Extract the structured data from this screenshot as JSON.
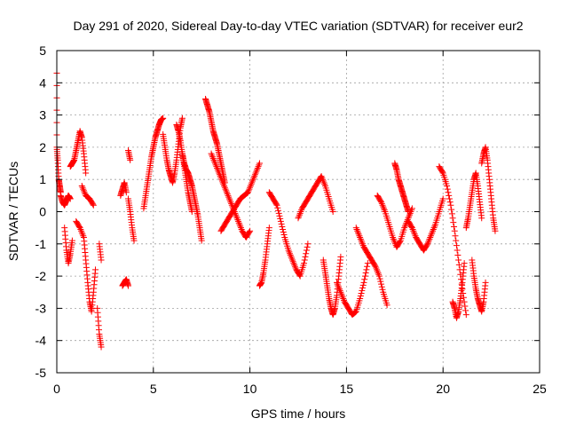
{
  "chart_data": {
    "type": "scatter",
    "title": "Day 291 of 2020, Sidereal Day-to-day VTEC variation (SDTVAR) for receiver eur2",
    "xlabel": "GPS time / hours",
    "ylabel": "SDTVAR / TECUs",
    "xlim": [
      0,
      25
    ],
    "ylim": [
      -5,
      5
    ],
    "xticks": [
      "0",
      "5",
      "10",
      "15",
      "20",
      "25"
    ],
    "yticks": [
      "-5",
      "-4",
      "-3",
      "-2",
      "-1",
      "0",
      "1",
      "2",
      "3",
      "4",
      "5"
    ],
    "grid": true,
    "marker": "+",
    "series_color": "#ff0000",
    "segments": [
      {
        "x": [
          0.0,
          0.0,
          0.05,
          0.1,
          0.15,
          0.2
        ],
        "y": [
          4.3,
          2.0,
          1.6,
          1.0,
          0.8,
          0.6
        ]
      },
      {
        "x": [
          0.2,
          0.3,
          0.4,
          0.5,
          0.6,
          0.7
        ],
        "y": [
          0.5,
          0.3,
          0.2,
          0.35,
          0.5,
          0.4
        ]
      },
      {
        "x": [
          0.4,
          0.5,
          0.6,
          0.7,
          0.8
        ],
        "y": [
          -0.5,
          -1.2,
          -1.6,
          -1.3,
          -0.9
        ]
      },
      {
        "x": [
          0.7,
          0.8,
          0.9,
          1.0,
          1.1,
          1.2,
          1.3,
          1.4,
          1.5
        ],
        "y": [
          1.4,
          1.5,
          1.6,
          1.9,
          2.2,
          2.5,
          2.3,
          1.8,
          1.2
        ]
      },
      {
        "x": [
          1.0,
          1.2,
          1.4,
          1.5,
          1.6,
          1.7,
          1.8,
          1.9,
          2.0
        ],
        "y": [
          -0.3,
          -0.5,
          -0.8,
          -1.5,
          -2.2,
          -2.8,
          -3.1,
          -2.5,
          -1.8
        ]
      },
      {
        "x": [
          1.3,
          1.5,
          1.7,
          1.9
        ],
        "y": [
          0.8,
          0.5,
          0.4,
          0.2
        ]
      },
      {
        "x": [
          2.1,
          2.2,
          2.3
        ],
        "y": [
          -3.0,
          -3.8,
          -4.2
        ]
      },
      {
        "x": [
          2.2,
          2.3
        ],
        "y": [
          -1.0,
          -1.5
        ]
      },
      {
        "x": [
          3.4,
          3.5,
          3.6,
          3.7
        ],
        "y": [
          -2.3,
          -2.2,
          -2.1,
          -2.3
        ]
      },
      {
        "x": [
          3.3,
          3.4,
          3.5,
          3.6
        ],
        "y": [
          0.5,
          0.7,
          0.9,
          0.6
        ]
      },
      {
        "x": [
          3.7,
          3.8,
          3.9,
          4.0
        ],
        "y": [
          0.4,
          0.0,
          -0.5,
          -0.9
        ]
      },
      {
        "x": [
          3.7,
          3.8
        ],
        "y": [
          1.9,
          1.6
        ]
      },
      {
        "x": [
          4.5,
          4.6,
          4.7,
          4.8,
          4.9,
          5.0,
          5.1,
          5.2,
          5.3,
          5.4,
          5.5
        ],
        "y": [
          0.1,
          0.5,
          0.9,
          1.3,
          1.7,
          2.0,
          2.3,
          2.5,
          2.7,
          2.85,
          2.9
        ]
      },
      {
        "x": [
          5.5,
          5.6,
          5.7,
          5.8,
          5.9,
          6.0,
          6.1,
          6.2,
          6.3,
          6.4,
          6.5
        ],
        "y": [
          2.4,
          2.0,
          1.6,
          1.3,
          1.1,
          0.9,
          1.2,
          1.6,
          2.1,
          2.6,
          2.9
        ]
      },
      {
        "x": [
          6.2,
          6.3,
          6.4,
          6.5,
          6.6,
          6.7,
          6.8,
          6.9,
          7.0
        ],
        "y": [
          2.7,
          2.5,
          2.2,
          1.8,
          1.4,
          1.0,
          0.6,
          0.3,
          0.0
        ]
      },
      {
        "x": [
          6.5,
          6.6,
          6.7,
          6.8,
          6.9,
          7.0,
          7.1,
          7.2,
          7.3,
          7.4,
          7.5
        ],
        "y": [
          1.8,
          1.5,
          1.3,
          1.2,
          1.0,
          0.8,
          0.5,
          0.2,
          -0.1,
          -0.5,
          -0.9
        ]
      },
      {
        "x": [
          7.7,
          7.8,
          7.9,
          8.0,
          8.1,
          8.2,
          8.3,
          8.4,
          8.5,
          8.6,
          8.7
        ],
        "y": [
          3.5,
          3.3,
          3.1,
          2.8,
          2.5,
          2.3,
          2.1,
          1.8,
          1.5,
          1.2,
          0.9
        ]
      },
      {
        "x": [
          8.0,
          8.2,
          8.4,
          8.6,
          8.8,
          9.0,
          9.2,
          9.4,
          9.6,
          9.8,
          10.0
        ],
        "y": [
          1.8,
          1.5,
          1.2,
          0.9,
          0.6,
          0.3,
          0.0,
          -0.3,
          -0.6,
          -0.8,
          -0.6
        ]
      },
      {
        "x": [
          8.5,
          8.7,
          8.9,
          9.1,
          9.3,
          9.5,
          9.7,
          9.9,
          10.1,
          10.3,
          10.5
        ],
        "y": [
          -0.6,
          -0.4,
          -0.2,
          0.0,
          0.2,
          0.4,
          0.5,
          0.6,
          0.9,
          1.2,
          1.5
        ]
      },
      {
        "x": [
          10.5,
          10.6,
          10.7,
          10.8,
          10.9,
          11.0
        ],
        "y": [
          -2.3,
          -2.2,
          -1.9,
          -1.5,
          -1.0,
          -0.5
        ]
      },
      {
        "x": [
          11.0,
          11.2,
          11.4,
          11.6,
          11.8,
          12.0,
          12.2,
          12.4,
          12.6,
          12.8,
          13.0
        ],
        "y": [
          0.6,
          0.4,
          0.2,
          -0.3,
          -0.8,
          -1.2,
          -1.5,
          -1.8,
          -2.0,
          -1.6,
          -1.0
        ]
      },
      {
        "x": [
          12.5,
          12.7,
          12.9,
          13.1,
          13.3,
          13.5,
          13.7,
          13.9,
          14.1,
          14.3
        ],
        "y": [
          -0.2,
          0.1,
          0.3,
          0.5,
          0.7,
          0.9,
          1.1,
          0.8,
          0.4,
          0.0
        ]
      },
      {
        "x": [
          13.8,
          13.9,
          14.0,
          14.1,
          14.2,
          14.3,
          14.4,
          14.5,
          14.6,
          14.7
        ],
        "y": [
          -1.5,
          -1.9,
          -2.3,
          -2.7,
          -3.0,
          -3.2,
          -3.0,
          -2.6,
          -2.0,
          -1.4
        ]
      },
      {
        "x": [
          14.5,
          14.7,
          14.9,
          15.1,
          15.3,
          15.5,
          15.7,
          15.9,
          16.1
        ],
        "y": [
          -2.2,
          -2.5,
          -2.8,
          -3.0,
          -3.2,
          -3.1,
          -2.7,
          -2.2,
          -1.6
        ]
      },
      {
        "x": [
          15.5,
          15.7,
          15.9,
          16.1,
          16.3,
          16.5,
          16.7,
          16.9,
          17.1
        ],
        "y": [
          -0.5,
          -0.8,
          -1.1,
          -1.3,
          -1.5,
          -1.7,
          -2.0,
          -2.5,
          -2.9
        ]
      },
      {
        "x": [
          16.6,
          16.8,
          17.0,
          17.2,
          17.4,
          17.6,
          17.8,
          18.0,
          18.2,
          18.4
        ],
        "y": [
          0.5,
          0.3,
          0.0,
          -0.4,
          -0.8,
          -1.1,
          -0.9,
          -0.5,
          -0.2,
          0.1
        ]
      },
      {
        "x": [
          17.5,
          17.6,
          17.7,
          17.8,
          17.9,
          18.0,
          18.1,
          18.2
        ],
        "y": [
          1.5,
          1.3,
          1.0,
          0.8,
          0.6,
          0.4,
          0.2,
          0.0
        ]
      },
      {
        "x": [
          18.2,
          18.4,
          18.6,
          18.8,
          19.0,
          19.2,
          19.4,
          19.6,
          19.8,
          20.0
        ],
        "y": [
          -0.3,
          -0.5,
          -0.8,
          -1.0,
          -1.2,
          -1.0,
          -0.7,
          -0.4,
          0.0,
          0.4
        ]
      },
      {
        "x": [
          19.8,
          20.0,
          20.2,
          20.4,
          20.6,
          20.8,
          21.0,
          21.2
        ],
        "y": [
          1.4,
          1.2,
          0.8,
          0.2,
          -0.6,
          -1.5,
          -2.4,
          -3.2
        ]
      },
      {
        "x": [
          20.5,
          20.6,
          20.7,
          20.8,
          20.9,
          21.0,
          21.1
        ],
        "y": [
          -2.8,
          -3.0,
          -3.3,
          -3.1,
          -2.7,
          -2.2,
          -1.6
        ]
      },
      {
        "x": [
          21.2,
          21.3,
          21.4,
          21.5,
          21.6,
          21.7,
          21.8,
          21.9,
          22.0
        ],
        "y": [
          -0.5,
          -0.2,
          0.2,
          0.6,
          1.0,
          1.2,
          0.8,
          0.3,
          -0.2
        ]
      },
      {
        "x": [
          21.5,
          21.6,
          21.7,
          21.8,
          21.9,
          22.0,
          22.1,
          22.2
        ],
        "y": [
          -1.5,
          -2.0,
          -2.4,
          -2.7,
          -2.9,
          -3.1,
          -2.8,
          -2.2
        ]
      },
      {
        "x": [
          22.0,
          22.1,
          22.2,
          22.3,
          22.4,
          22.5,
          22.6,
          22.7
        ],
        "y": [
          1.5,
          1.8,
          2.0,
          1.6,
          1.0,
          0.4,
          -0.2,
          -0.6
        ]
      }
    ]
  }
}
